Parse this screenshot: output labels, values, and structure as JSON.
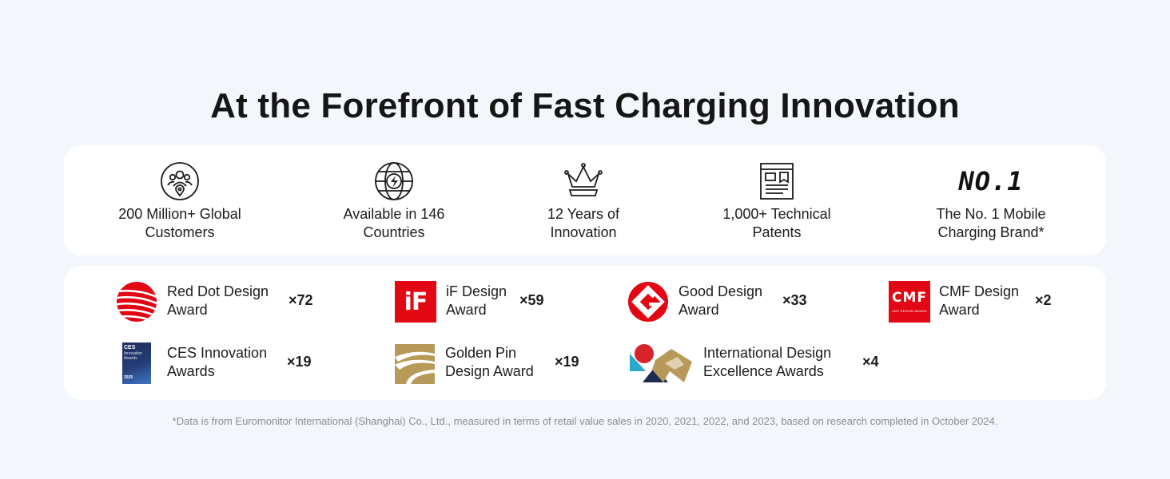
{
  "title": "At the Forefront of Fast Charging Innovation",
  "stats": [
    {
      "icon": "customers-icon",
      "line1": "200 Million+ Global",
      "line2": "Customers"
    },
    {
      "icon": "globe-charging-icon",
      "line1": "Available in 146",
      "line2": "Countries"
    },
    {
      "icon": "crown-icon",
      "line1": "12 Years of",
      "line2": "Innovation"
    },
    {
      "icon": "patent-document-icon",
      "line1": "1,000+ Technical",
      "line2": "Patents"
    },
    {
      "icon_text": "NO.1",
      "line1": "The No. 1 Mobile",
      "line2": "Charging Brand*"
    }
  ],
  "awards": [
    {
      "logo": "red-dot-logo",
      "line1": "Red Dot Design",
      "line2": "Award",
      "count": "×72"
    },
    {
      "logo": "if-design-logo",
      "line1": "iF Design",
      "line2": "Award",
      "count": "×59"
    },
    {
      "logo": "good-design-logo",
      "line1": "Good Design",
      "line2": "Award",
      "count": "×33"
    },
    {
      "logo": "cmf-design-logo",
      "line1": "CMF Design",
      "line2": "Award",
      "count": "×2"
    },
    {
      "logo": "ces-innovation-logo",
      "line1": "CES Innovation",
      "line2": "Awards",
      "count": "×19"
    },
    {
      "logo": "golden-pin-logo",
      "line1": "Golden Pin",
      "line2": "Design Award",
      "count": "×19"
    },
    {
      "logo": "idea-logo",
      "line1": "International Design",
      "line2": "Excellence Awards",
      "count": "×4"
    }
  ],
  "logo_text": {
    "if": "iF",
    "cmf": "CMF",
    "cmf_sub": "CMF DESIGN AWARD",
    "ces": "CES",
    "ces_sub": "Innovation Awards",
    "ces_year": "2025"
  },
  "colors": {
    "background": "#f3f6fa",
    "card": "#ffffff",
    "red": "#e30613",
    "gold": "#b79a5a",
    "navy": "#1d2b50"
  },
  "footnote": "*Data is from Euromonitor International (Shanghai) Co., Ltd., measured in terms of retail value sales in 2020, 2021, 2022, and 2023, based on research completed in October 2024."
}
